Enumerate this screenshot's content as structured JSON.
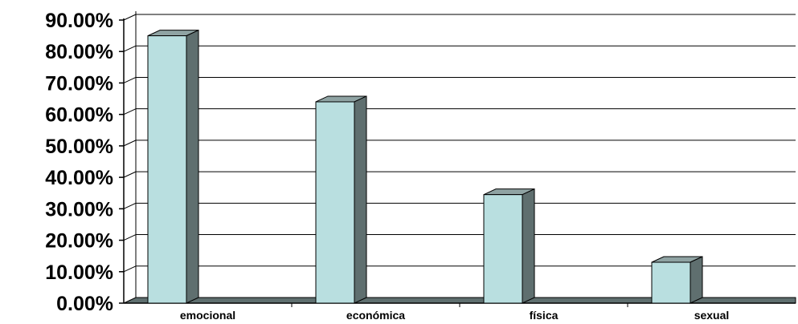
{
  "chart_data": {
    "type": "bar",
    "categories": [
      "emocional",
      "económica",
      "física",
      "sexual"
    ],
    "values": [
      85.0,
      64.0,
      34.5,
      13.0
    ],
    "title": "",
    "xlabel": "",
    "ylabel": "",
    "ylim": [
      0,
      90
    ],
    "ytick_step": 10,
    "ytick_labels": [
      "0.00%",
      "10.00%",
      "20.00%",
      "30.00%",
      "40.00%",
      "50.00%",
      "60.00%",
      "70.00%",
      "80.00%",
      "90.00%"
    ],
    "grid": true,
    "style": "3d-column",
    "colors": {
      "bar_front": "#b9dfe0",
      "bar_side": "#5f6f6f",
      "bar_top": "#8fa3a3",
      "floor": "#5f6f6f",
      "grid": "#000000"
    }
  }
}
